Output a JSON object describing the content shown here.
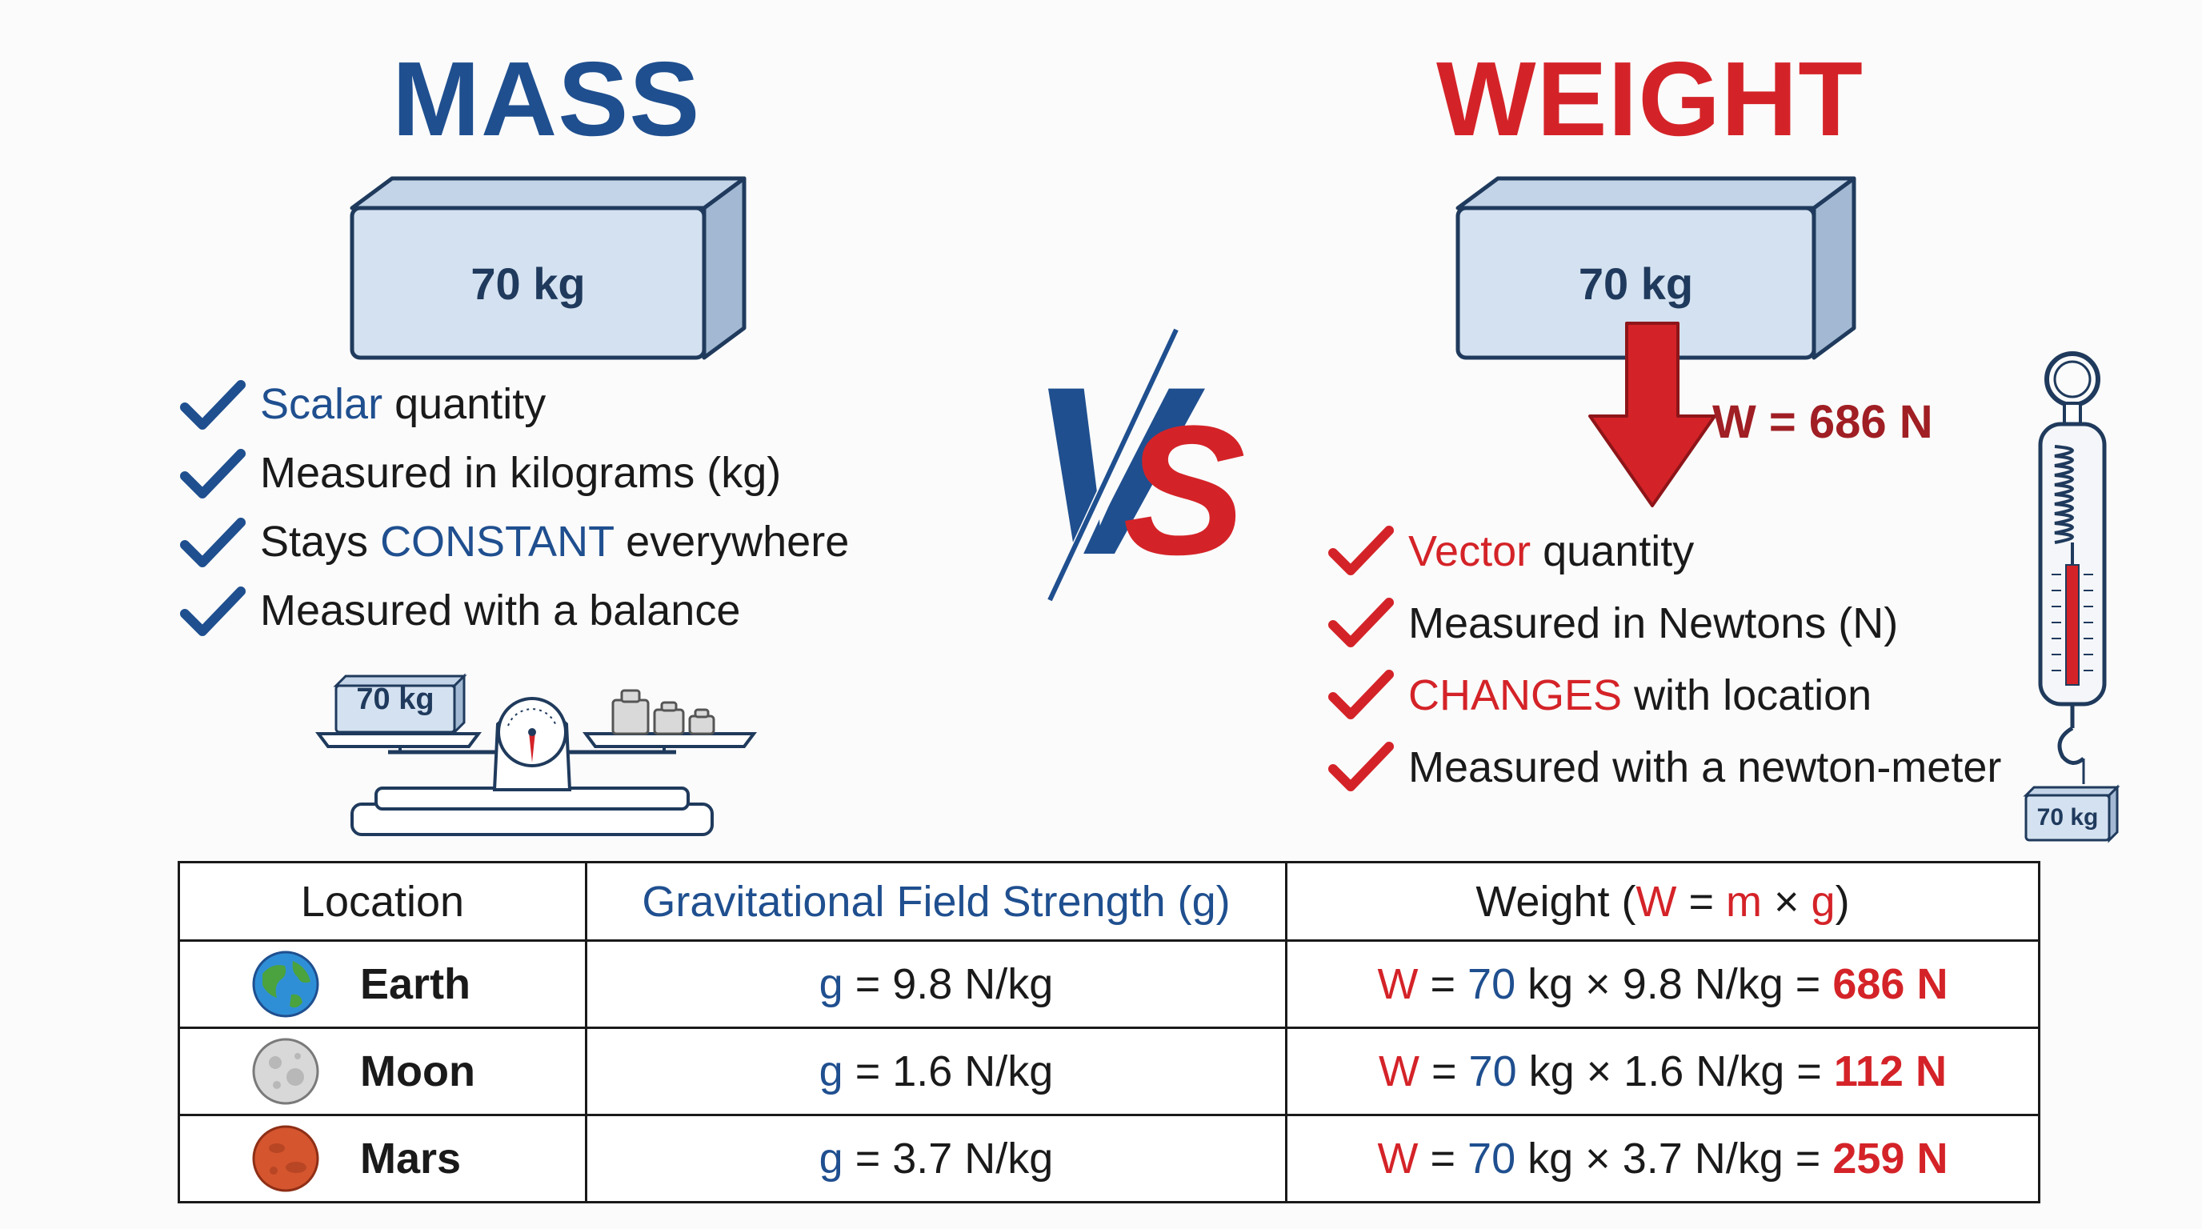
{
  "mass": {
    "title": "MASS",
    "block_label": "70 kg",
    "balance_label": "70 kg",
    "properties": [
      {
        "highlight": "Scalar",
        "rest": " quantity"
      },
      {
        "highlight": "",
        "pre": "Measured in kilograms (kg)"
      },
      {
        "pre": "Stays ",
        "highlight": "CONSTANT",
        "rest": " everywhere"
      },
      {
        "pre": "Measured with a balance"
      }
    ]
  },
  "vs": {
    "v": "V",
    "s": "S"
  },
  "weight": {
    "title": "WEIGHT",
    "block_label": "70 kg",
    "force_label": "W = 686 N",
    "hanging_label": "70 kg",
    "properties": [
      {
        "highlight": "Vector",
        "rest": " quantity"
      },
      {
        "pre": "Measured in Newtons (N)"
      },
      {
        "highlight": "CHANGES",
        "rest": " with location"
      },
      {
        "pre": "Measured with a newton-meter"
      }
    ]
  },
  "table": {
    "headers": {
      "location": "Location",
      "g": "Gravitational Field Strength (g)",
      "weight_pre": "Weight (",
      "weight_w": "W",
      "weight_eq": " = ",
      "weight_m": "m",
      "weight_x": " × ",
      "weight_g": "g",
      "weight_post": ")"
    },
    "rows": [
      {
        "icon": "earth-icon",
        "name": "Earth",
        "g_sym": "g",
        "g_val": " = 9.8 N/kg",
        "w": "W",
        "eq1": " = ",
        "m": "70",
        "mid": " kg × 9.8 N/kg = ",
        "result": "686 N"
      },
      {
        "icon": "moon-icon",
        "name": "Moon",
        "g_sym": "g",
        "g_val": " = 1.6 N/kg",
        "w": "W",
        "eq1": " = ",
        "m": "70",
        "mid": " kg × 1.6 N/kg = ",
        "result": "112 N"
      },
      {
        "icon": "mars-icon",
        "name": "Mars",
        "g_sym": "g",
        "g_val": " = 3.7 N/kg",
        "w": "W",
        "eq1": " = ",
        "m": "70",
        "mid": " kg × 3.7 N/kg = ",
        "result": "259 N"
      }
    ]
  },
  "colors": {
    "blue": "#1f4f8f",
    "red": "#d42328",
    "block_fill": "#d4e1f0",
    "block_side": "#a3b9d3"
  }
}
